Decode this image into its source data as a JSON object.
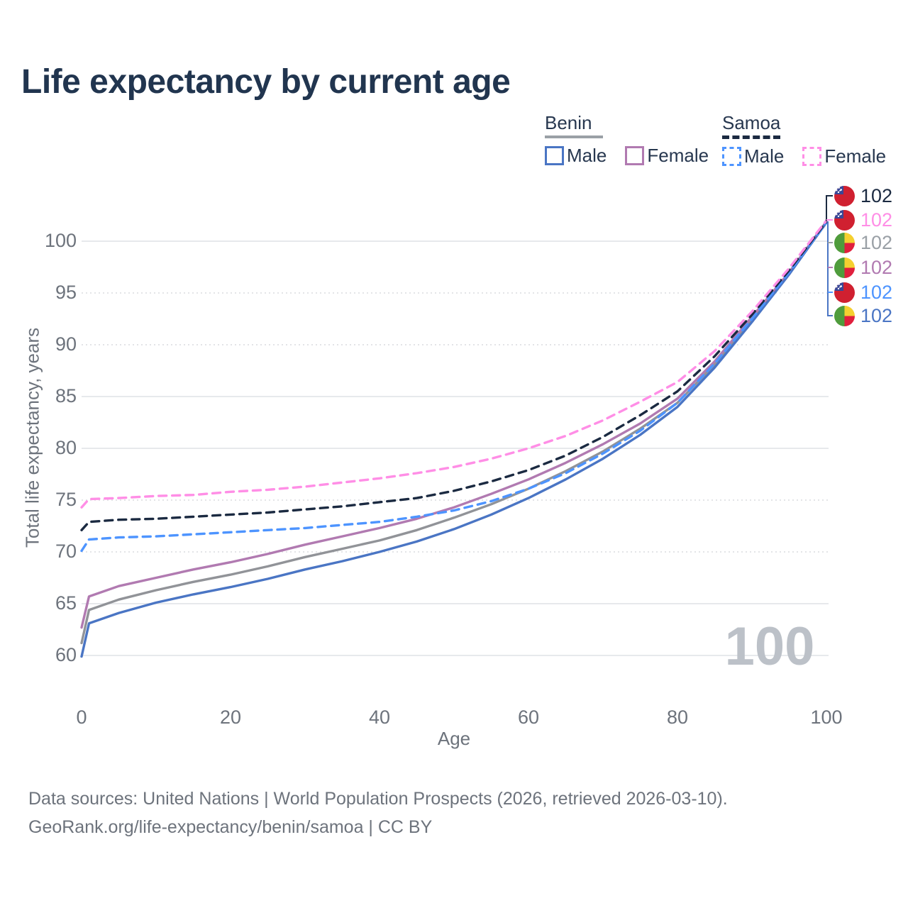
{
  "title": "Life expectancy by current age",
  "legend": {
    "groups": [
      {
        "label": "Benin",
        "line_style": "solid",
        "underline_color": "#9aa0a6",
        "items": [
          {
            "label": "Male",
            "color": "#4a75c4"
          },
          {
            "label": "Female",
            "color": "#b17ab1"
          }
        ]
      },
      {
        "label": "Samoa",
        "line_style": "dashed",
        "underline_color": "#1b2a41",
        "items": [
          {
            "label": "Male",
            "color": "#4d94ff"
          },
          {
            "label": "Female",
            "color": "#ff8ee6"
          }
        ]
      }
    ]
  },
  "watermark": "100",
  "footer": {
    "line1": "Data sources: United Nations | World Population Prospects (2026, retrieved 2026-03-10).",
    "line2": "GeoRank.org/life-expectancy/benin/samoa | CC BY"
  },
  "chart_data": {
    "type": "line",
    "title": "Life expectancy by current age",
    "xlabel": "Age",
    "ylabel": "Total life expectancy, years",
    "xlim": [
      0,
      100
    ],
    "ylim": [
      58,
      103
    ],
    "x_ticks": [
      0,
      20,
      40,
      60,
      80,
      100
    ],
    "y_ticks": [
      60,
      65,
      70,
      75,
      80,
      85,
      90,
      95,
      100
    ],
    "grid": "horizontal only",
    "legend_position": "top-right",
    "ages": [
      0,
      1,
      5,
      10,
      15,
      20,
      25,
      30,
      35,
      40,
      45,
      50,
      55,
      60,
      65,
      70,
      75,
      80,
      85,
      90,
      95,
      100
    ],
    "series": [
      {
        "name": "Benin Both sexes",
        "country": "Benin",
        "sex": "both",
        "color": "#919398",
        "dash": false,
        "values": [
          61.2,
          64.4,
          65.4,
          66.3,
          67.1,
          67.8,
          68.6,
          69.5,
          70.3,
          71.1,
          72.1,
          73.3,
          74.6,
          76.1,
          77.8,
          79.7,
          81.9,
          84.4,
          88.1,
          92.4,
          96.9,
          101.8
        ]
      },
      {
        "name": "Benin Female",
        "country": "Benin",
        "sex": "female",
        "color": "#b17ab1",
        "dash": false,
        "values": [
          62.7,
          65.7,
          66.7,
          67.5,
          68.3,
          69.0,
          69.8,
          70.7,
          71.5,
          72.3,
          73.2,
          74.3,
          75.6,
          77.0,
          78.6,
          80.4,
          82.4,
          84.8,
          88.4,
          92.7,
          97.0,
          101.9
        ]
      },
      {
        "name": "Benin Male",
        "country": "Benin",
        "sex": "male",
        "color": "#4a75c4",
        "dash": false,
        "values": [
          59.9,
          63.1,
          64.1,
          65.1,
          65.9,
          66.6,
          67.4,
          68.3,
          69.1,
          70.0,
          71.0,
          72.2,
          73.6,
          75.2,
          77.0,
          79.0,
          81.3,
          84.0,
          87.8,
          92.2,
          96.8,
          101.8
        ]
      },
      {
        "name": "Samoa Male",
        "country": "Samoa",
        "sex": "male",
        "color": "#4d94ff",
        "dash": true,
        "values": [
          70.1,
          71.2,
          71.4,
          71.5,
          71.7,
          71.9,
          72.1,
          72.3,
          72.6,
          72.9,
          73.4,
          74.0,
          74.9,
          76.1,
          77.6,
          79.5,
          81.7,
          84.4,
          88.2,
          92.5,
          97.0,
          101.8
        ]
      },
      {
        "name": "Samoa Both sexes",
        "country": "Samoa",
        "sex": "both",
        "color": "#1b2a41",
        "dash": true,
        "values": [
          72.1,
          72.9,
          73.1,
          73.2,
          73.4,
          73.6,
          73.8,
          74.1,
          74.4,
          74.8,
          75.2,
          75.9,
          76.8,
          77.9,
          79.3,
          81.1,
          83.2,
          85.5,
          88.9,
          92.9,
          97.2,
          101.9
        ]
      },
      {
        "name": "Samoa Female",
        "country": "Samoa",
        "sex": "female",
        "color": "#ff8ee6",
        "dash": true,
        "values": [
          74.3,
          75.1,
          75.2,
          75.4,
          75.5,
          75.8,
          76.0,
          76.3,
          76.7,
          77.1,
          77.6,
          78.2,
          79.0,
          80.0,
          81.2,
          82.7,
          84.5,
          86.4,
          89.4,
          93.2,
          97.4,
          102.0
        ]
      }
    ],
    "end_labels": [
      {
        "flag": "samoa",
        "series": "Samoa Both sexes",
        "value": "102",
        "color": "#1b2a41"
      },
      {
        "flag": "samoa",
        "series": "Samoa Female",
        "value": "102",
        "color": "#ff8ee6"
      },
      {
        "flag": "benin",
        "series": "Benin Both sexes",
        "value": "102",
        "color": "#9aa0a6"
      },
      {
        "flag": "benin",
        "series": "Benin Female",
        "value": "102",
        "color": "#b17ab1"
      },
      {
        "flag": "samoa",
        "series": "Samoa Male",
        "value": "102",
        "color": "#4d94ff"
      },
      {
        "flag": "benin",
        "series": "Benin Male",
        "value": "102",
        "color": "#4a75c4"
      }
    ]
  }
}
